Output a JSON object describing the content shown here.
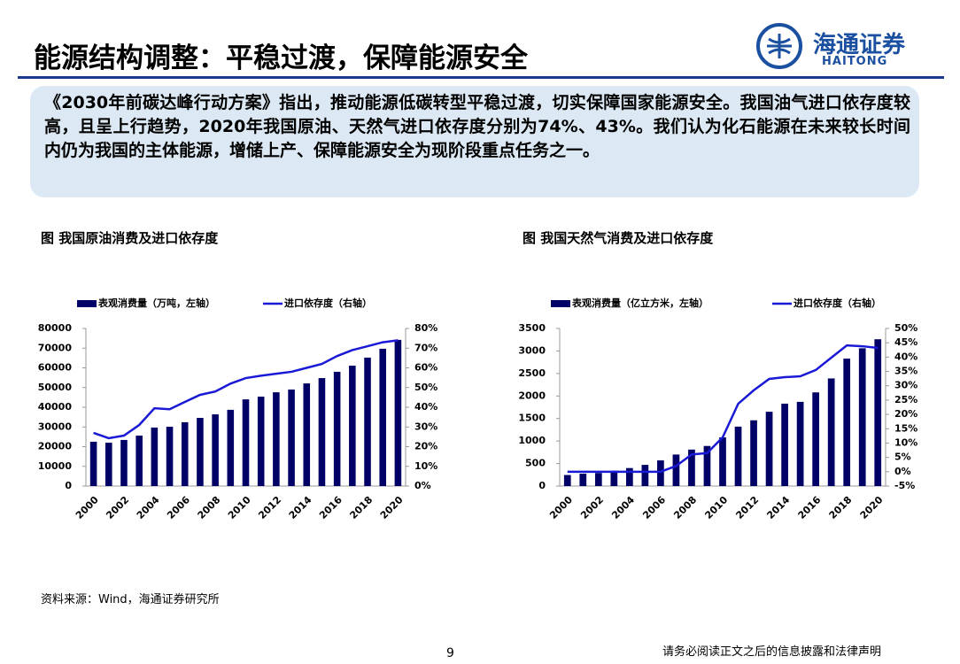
{
  "header": {
    "title": "能源结构调整：平稳过渡，保障能源安全",
    "logo_cn": "海通证券",
    "logo_en": "HAITONG"
  },
  "summary": "《2030年前碳达峰行动方案》指出，推动能源低碳转型平稳过渡，切实保障国家能源安全。我国油气进口依存度较高，且呈上行趋势，2020年我国原油、天然气进口依存度分别为74%、43%。我们认为化石能源在未来较长时间内仍为我国的主体能源，增储上产、保障能源安全为现阶段重点任务之一。",
  "chart_data": [
    {
      "type": "bar-line",
      "title": "图 我国原油消费及进口依存度",
      "categories": [
        2000,
        null,
        2002,
        null,
        2004,
        null,
        2006,
        null,
        2008,
        null,
        2010,
        null,
        2012,
        null,
        2014,
        null,
        2016,
        null,
        2018,
        null,
        2020
      ],
      "series": [
        {
          "name": "表观消费量（万吨，左轴）",
          "color": "#000066",
          "values": [
            22500,
            22000,
            23400,
            25600,
            29700,
            30100,
            32400,
            34600,
            36400,
            38700,
            44000,
            45400,
            47600,
            49000,
            52100,
            54800,
            58000,
            61100,
            65200,
            69700,
            74200
          ]
        },
        {
          "name": "进口依存度（右轴）",
          "color": "#1a1ad6",
          "axis": "y2",
          "values": [
            27,
            24.3,
            25.6,
            31,
            39.5,
            39,
            42.7,
            46.3,
            48,
            52,
            54.8,
            56,
            57,
            58,
            60,
            62,
            66,
            69,
            71,
            73,
            74
          ]
        }
      ],
      "ylim": [
        0,
        80000
      ],
      "yticks": [
        0,
        10000,
        20000,
        30000,
        40000,
        50000,
        60000,
        70000,
        80000
      ],
      "y2lim": [
        0,
        80
      ],
      "y2ticks": [
        {
          "value": 0,
          "label": "0%"
        },
        {
          "value": 10,
          "label": "10%"
        },
        {
          "value": 20,
          "label": "20%"
        },
        {
          "value": 30,
          "label": "30%"
        },
        {
          "value": 40,
          "label": "40%"
        },
        {
          "value": 50,
          "label": "50%"
        },
        {
          "value": 60,
          "label": "60%"
        },
        {
          "value": 70,
          "label": "70%"
        },
        {
          "value": 80,
          "label": "80%"
        }
      ]
    },
    {
      "type": "bar-line",
      "title": "图 我国天然气消费及进口依存度",
      "categories": [
        2000,
        null,
        2002,
        null,
        2004,
        null,
        2006,
        null,
        2008,
        null,
        2010,
        null,
        2012,
        null,
        2014,
        null,
        2016,
        null,
        2018,
        null,
        2020
      ],
      "series": [
        {
          "name": "表观消费量（亿立方米，左轴）",
          "color": "#000066",
          "values": [
            245,
            275,
            290,
            340,
            400,
            470,
            570,
            700,
            810,
            890,
            1080,
            1320,
            1460,
            1650,
            1830,
            1870,
            2080,
            2390,
            2830,
            3060,
            3260
          ]
        },
        {
          "name": "进口依存度（右轴）",
          "color": "#1a1ad6",
          "axis": "y2",
          "values": [
            0,
            0,
            0,
            0,
            0,
            0,
            0,
            2,
            6,
            6.5,
            12,
            23.7,
            28.4,
            32.4,
            33,
            33.3,
            35.5,
            39.8,
            44.1,
            43.8,
            43.2
          ]
        }
      ],
      "ylim": [
        0,
        3500
      ],
      "yticks": [
        0,
        500,
        1000,
        1500,
        2000,
        2500,
        3000,
        3500
      ],
      "y2lim": [
        -5,
        50
      ],
      "y2ticks": [
        {
          "value": -5,
          "label": "-5%"
        },
        {
          "value": 0,
          "label": "0%"
        },
        {
          "value": 5,
          "label": "5%"
        },
        {
          "value": 10,
          "label": "10%"
        },
        {
          "value": 15,
          "label": "15%"
        },
        {
          "value": 20,
          "label": "20%"
        },
        {
          "value": 25,
          "label": "25%"
        },
        {
          "value": 30,
          "label": "30%"
        },
        {
          "value": 35,
          "label": "35%"
        },
        {
          "value": 40,
          "label": "40%"
        },
        {
          "value": 45,
          "label": "45%"
        },
        {
          "value": 50,
          "label": "50%"
        }
      ]
    }
  ],
  "source": "资料来源：Wind，海通证券研究所",
  "footer": {
    "page": "9",
    "disclaimer": "请务必阅读正文之后的信息披露和法律声明"
  }
}
